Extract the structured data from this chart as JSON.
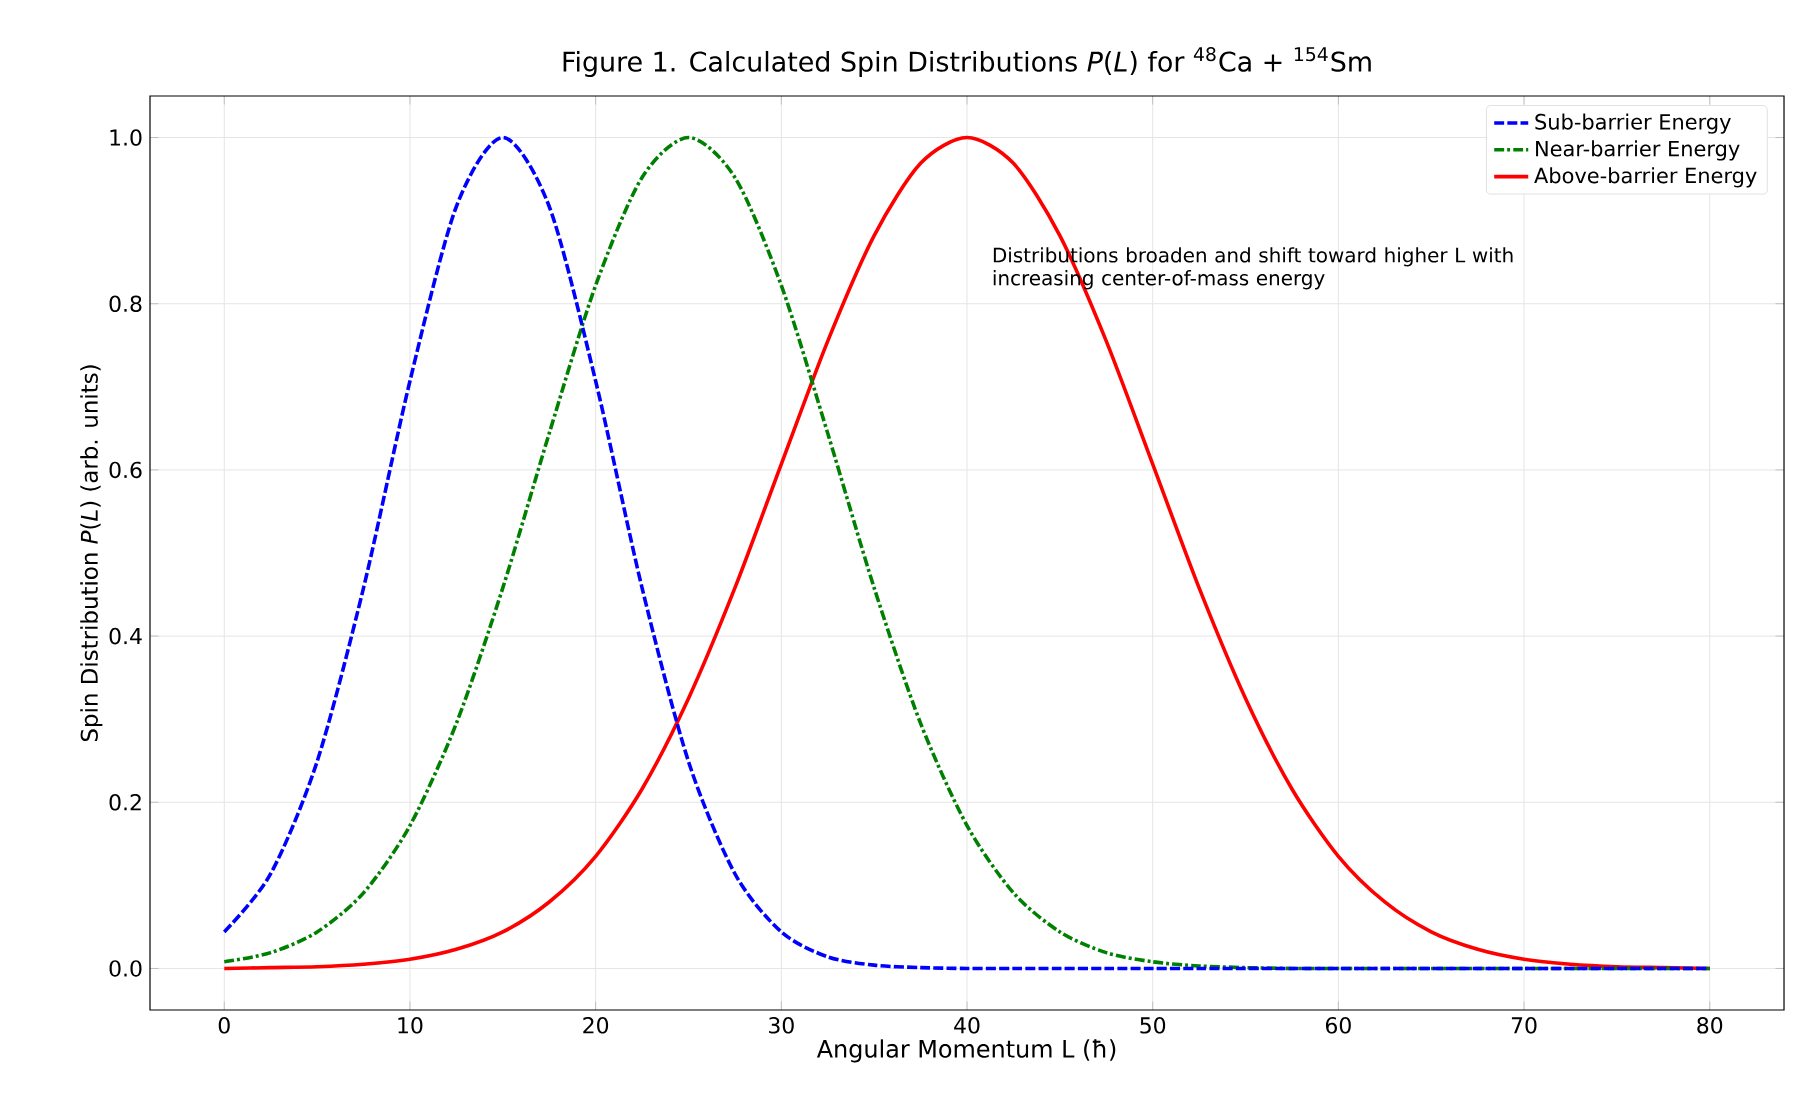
{
  "chart_data": {
    "type": "line",
    "title": "Figure 1. Calculated Spin Distributions *P*(*L*) for $^{48}$Ca + $^{154}$Sm",
    "xlabel": "Angular Momentum L (ħ)",
    "ylabel": "Spin Distribution *P*(*L*) (arb. units)",
    "x": [
      0,
      2.5,
      5,
      7.5,
      10,
      12.5,
      15,
      17.5,
      20,
      22.5,
      25,
      27.5,
      30,
      32.5,
      35,
      37.5,
      40,
      42.5,
      45,
      47.5,
      50,
      52.5,
      55,
      57.5,
      60,
      62.5,
      65,
      67.5,
      70,
      72.5,
      75,
      77.5,
      80
    ],
    "series": [
      {
        "name": "Sub-barrier Energy",
        "color": "#0000ff",
        "line_style": "dashed",
        "values": [
          0.044,
          0.114,
          0.249,
          0.458,
          0.707,
          0.917,
          1,
          0.917,
          0.707,
          0.458,
          0.249,
          0.114,
          0.044,
          0.014,
          0.004,
          0.001,
          0,
          0,
          0,
          0,
          0,
          0,
          0,
          0,
          0,
          0,
          0,
          0,
          0,
          0,
          0,
          0,
          0
        ]
      },
      {
        "name": "Near-barrier Energy",
        "color": "#008000",
        "line_style": "dashdot",
        "values": [
          0.008,
          0.019,
          0.044,
          0.091,
          0.172,
          0.295,
          0.458,
          0.644,
          0.822,
          0.952,
          1,
          0.952,
          0.822,
          0.644,
          0.458,
          0.295,
          0.172,
          0.091,
          0.044,
          0.019,
          0.008,
          0.003,
          0.001,
          0,
          0,
          0,
          0,
          0,
          0,
          0,
          0,
          0,
          0
        ]
      },
      {
        "name": "Above-barrier Energy",
        "color": "#ff0000",
        "line_style": "solid",
        "values": [
          0,
          0.001,
          0.002,
          0.005,
          0.011,
          0.023,
          0.044,
          0.08,
          0.135,
          0.216,
          0.325,
          0.458,
          0.607,
          0.755,
          0.882,
          0.969,
          1,
          0.969,
          0.882,
          0.755,
          0.607,
          0.458,
          0.325,
          0.216,
          0.135,
          0.08,
          0.044,
          0.023,
          0.011,
          0.005,
          0.002,
          0.001,
          0
        ]
      }
    ],
    "annotations": [
      "Distributions broaden and shift toward higher L with increasing center-of-mass energy"
    ],
    "xlim": [
      -4,
      84
    ],
    "ylim": [
      -0.05,
      1.05
    ],
    "xticks": [
      0,
      10,
      20,
      30,
      40,
      50,
      60,
      70,
      80
    ],
    "yticks": [
      {
        "value": 0,
        "label": "0.0"
      },
      {
        "value": 0.2,
        "label": "0.2"
      },
      {
        "value": 0.4,
        "label": "0.4"
      },
      {
        "value": 0.6,
        "label": "0.6"
      },
      {
        "value": 0.8,
        "label": "0.8"
      },
      {
        "value": 1,
        "label": "1.0"
      }
    ],
    "grid": true,
    "legend": "top right",
    "marker": "none"
  }
}
